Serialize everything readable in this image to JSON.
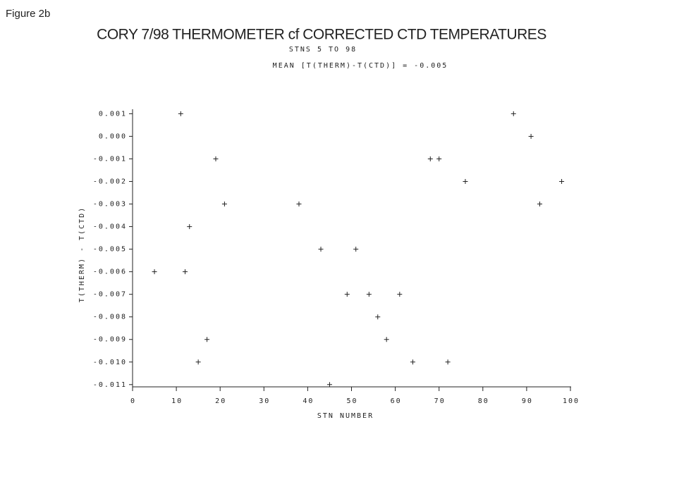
{
  "figure_label": "Figure 2b",
  "chart_data": {
    "type": "scatter",
    "title": "CORY 7/98 THERMOMETER cf CORRECTED CTD TEMPERATURES",
    "subtitle": "STNS 5 TO 98",
    "annotation": "MEAN [T(THERM)-T(CTD)] = -0.005",
    "xlabel": "STN NUMBER",
    "ylabel": "T(THERM) - T(CTD)",
    "marker": "+",
    "color": "#222222",
    "x": [
      5,
      11,
      12,
      13,
      15,
      17,
      19,
      21,
      38,
      43,
      45,
      49,
      51,
      54,
      56,
      58,
      61,
      64,
      68,
      70,
      72,
      76,
      87,
      91,
      93,
      98
    ],
    "values": [
      -0.006,
      0.001,
      -0.006,
      -0.004,
      -0.01,
      -0.009,
      -0.001,
      -0.003,
      -0.003,
      -0.005,
      -0.011,
      -0.007,
      -0.005,
      -0.007,
      -0.008,
      -0.009,
      -0.007,
      -0.01,
      -0.001,
      -0.001,
      -0.01,
      -0.002,
      0.001,
      0.0,
      -0.003,
      -0.002
    ],
    "xlim": [
      0,
      100
    ],
    "xticks": [
      0,
      10,
      20,
      30,
      40,
      50,
      60,
      70,
      80,
      90,
      100
    ],
    "ylim": [
      -0.0111,
      0.0012
    ],
    "yticks": [
      0.001,
      {
        "value": 0,
        "label": "0.000"
      },
      -0.001,
      -0.002,
      -0.003,
      -0.004,
      -0.005,
      -0.006,
      -0.007,
      -0.008,
      -0.009,
      {
        "value": -0.01,
        "label": "-0.010"
      },
      -0.011
    ]
  }
}
